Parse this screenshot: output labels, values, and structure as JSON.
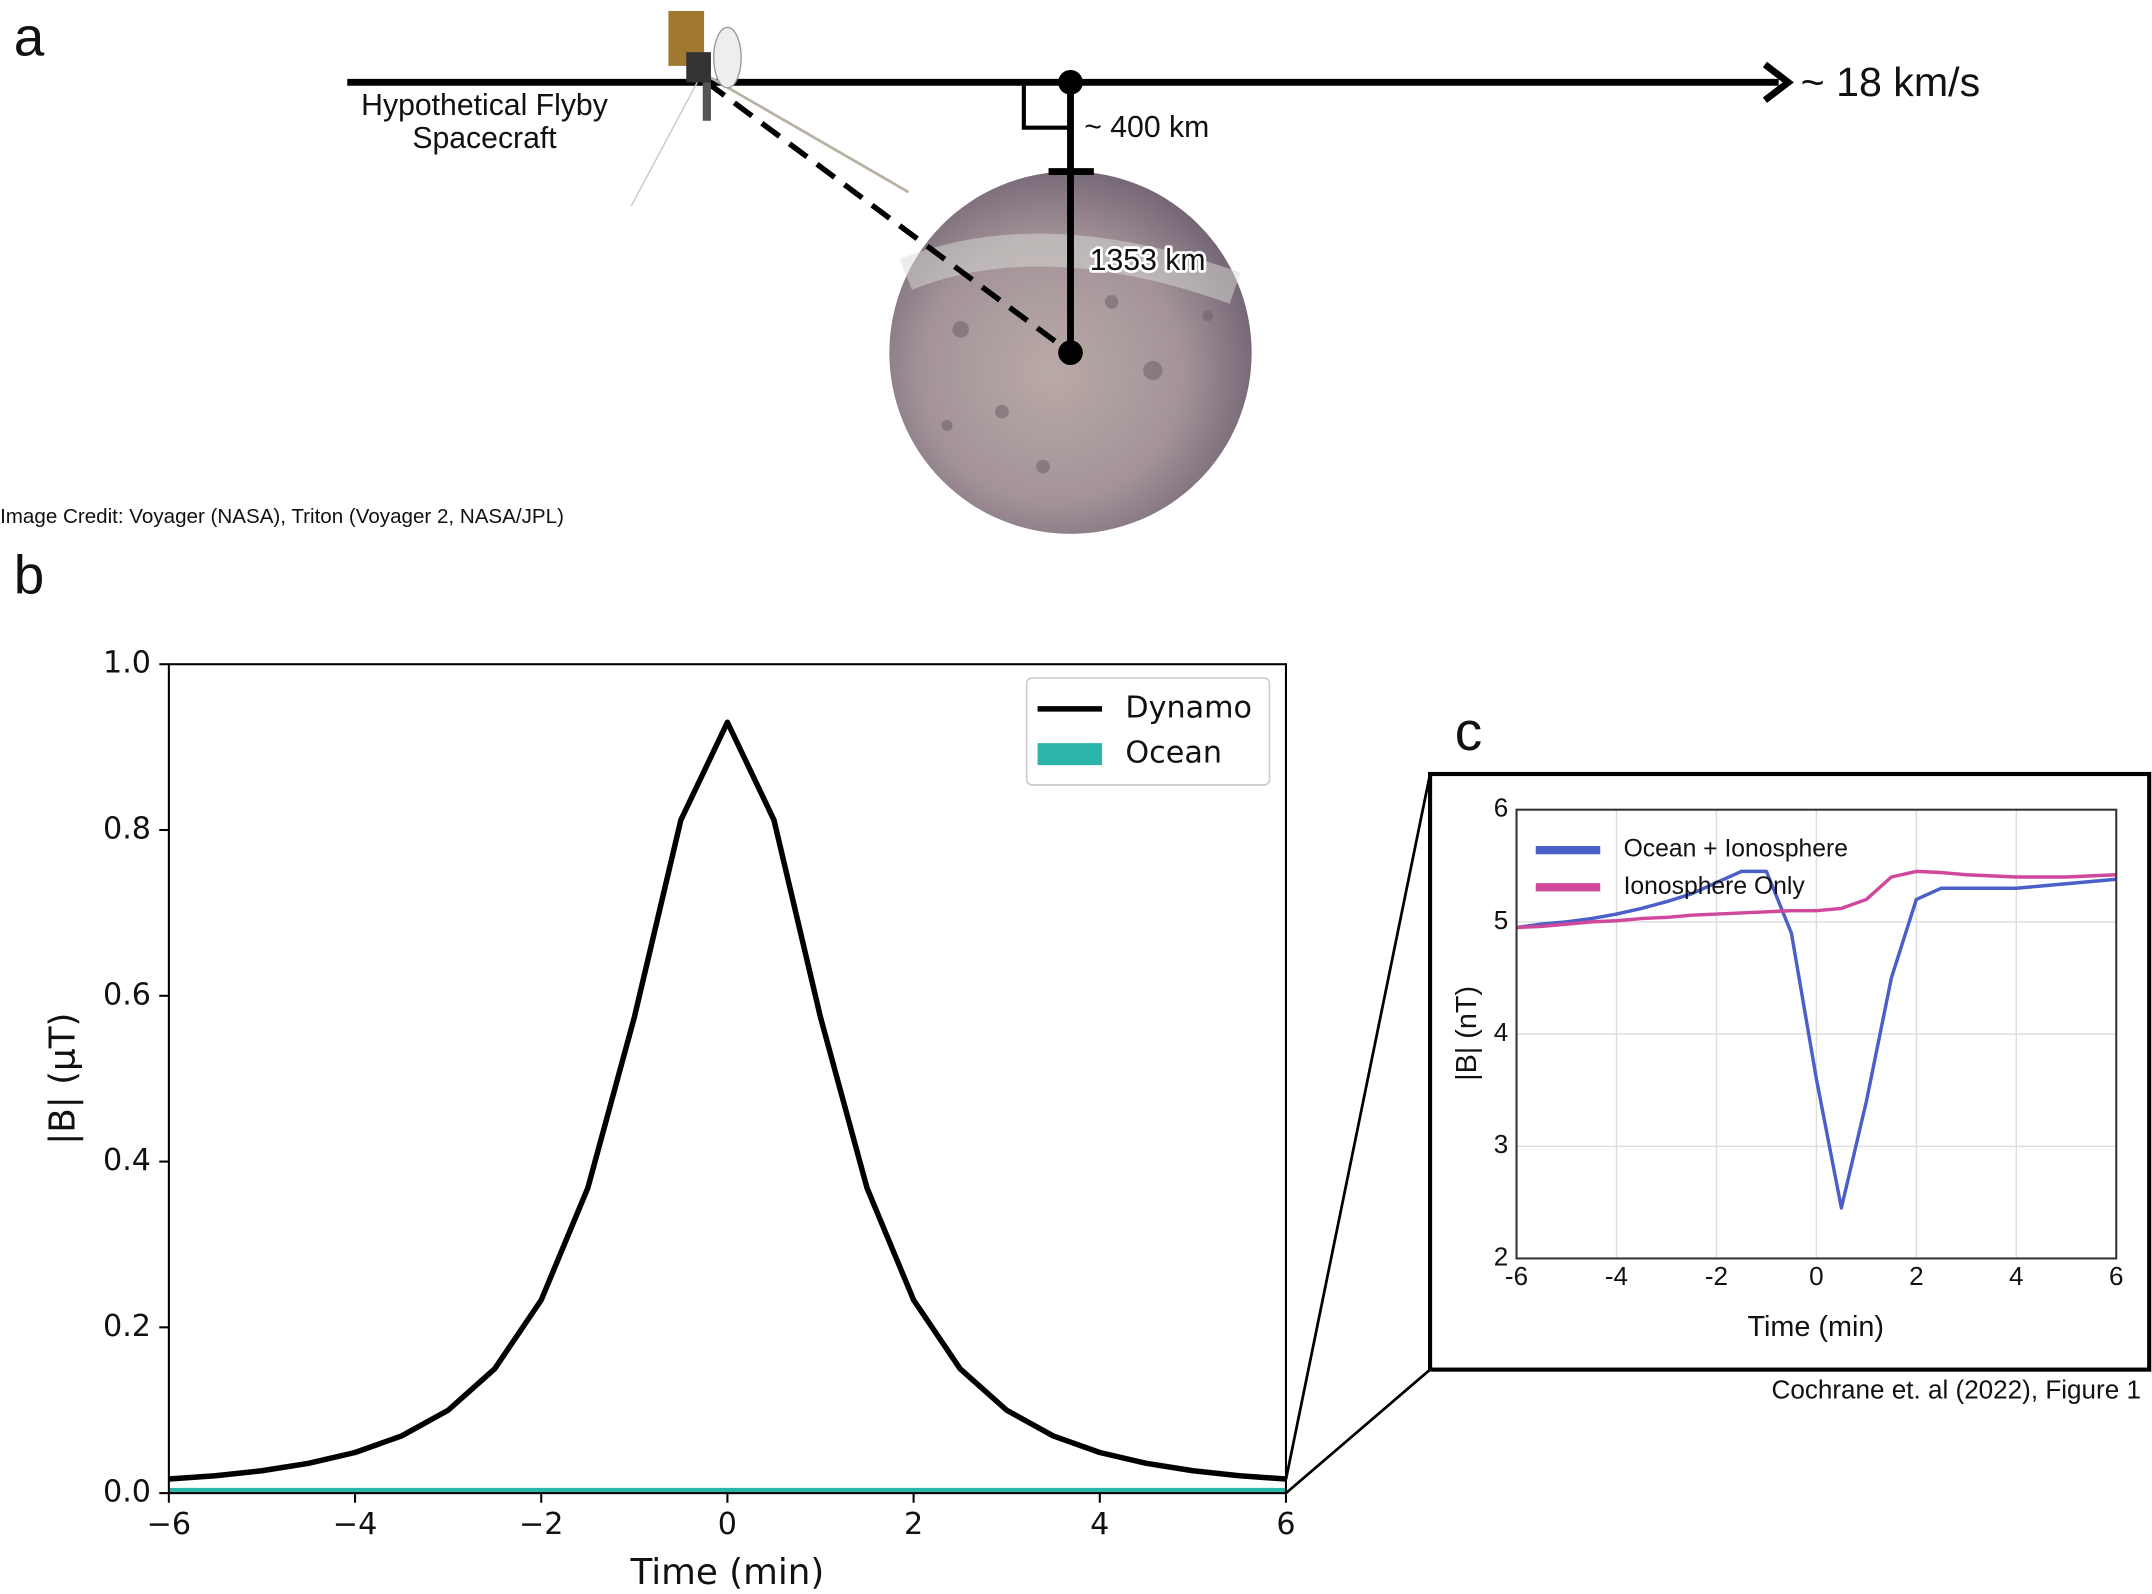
{
  "panel_a": {
    "label": "a",
    "spacecraft_label": [
      "Hypothetical Flyby",
      "Spacecraft"
    ],
    "altitude": "~ 400 km",
    "speed": "~ 18 km/s",
    "radius": "1353 km",
    "credit": "Image Credit:  Voyager (NASA), Triton (Voyager 2, NASA/JPL)"
  },
  "panel_labels": [
    "b",
    "c"
  ],
  "citation": "Cochrane et. al (2022), Figure 1",
  "chart_data": [
    {
      "type": "line",
      "xlabel": "Time (min)",
      "ylabel": "|B| (µT)",
      "x": [
        -6,
        -5.5,
        -5,
        -4.5,
        -4,
        -3.5,
        -3,
        -2.5,
        -2,
        -1.5,
        -1,
        -0.5,
        0,
        0.5,
        1,
        1.5,
        2,
        2.5,
        3,
        3.5,
        4,
        4.5,
        5,
        5.5,
        6
      ],
      "series": [
        {
          "name": "Dynamo",
          "color": "#000000",
          "values": [
            0.017,
            0.021,
            0.027,
            0.036,
            0.049,
            0.069,
            0.1,
            0.15,
            0.233,
            0.368,
            0.574,
            0.812,
            0.93,
            0.812,
            0.574,
            0.368,
            0.233,
            0.15,
            0.1,
            0.069,
            0.049,
            0.036,
            0.027,
            0.021,
            0.017
          ]
        },
        {
          "name": "Ocean",
          "color": "#2ab5a8",
          "values": [
            0.003,
            0.003,
            0.003,
            0.003,
            0.003,
            0.003,
            0.003,
            0.003,
            0.003,
            0.003,
            0.003,
            0.003,
            0.003,
            0.003,
            0.003,
            0.003,
            0.003,
            0.003,
            0.003,
            0.003,
            0.003,
            0.003,
            0.003,
            0.003,
            0.003
          ]
        }
      ],
      "xlim": [
        -6,
        6
      ],
      "ylim": [
        0,
        1
      ],
      "xticks": [
        {
          "value": -6,
          "label": "−6"
        },
        {
          "value": -4,
          "label": "−4"
        },
        {
          "value": -2,
          "label": "−2"
        },
        0,
        2,
        4,
        6
      ],
      "yticks": [
        {
          "value": 0,
          "label": "0.0"
        },
        0.2,
        0.4,
        0.6,
        0.8,
        {
          "value": 1,
          "label": "1.0"
        }
      ],
      "grid": false,
      "legend": "upper right"
    },
    {
      "type": "line",
      "xlabel": "Time (min)",
      "ylabel": "|B| (nT)",
      "x": [
        -6,
        -5.5,
        -5,
        -4.5,
        -4,
        -3.5,
        -3,
        -2.5,
        -2,
        -1.5,
        -1,
        -0.5,
        0,
        0.5,
        1,
        1.5,
        2,
        2.5,
        3,
        3.5,
        4,
        4.5,
        5,
        5.5,
        6
      ],
      "series": [
        {
          "name": "Ocean + Ionosphere",
          "color": "#4a5fc8",
          "values": [
            4.95,
            4.98,
            5.0,
            5.03,
            5.07,
            5.12,
            5.18,
            5.25,
            5.35,
            5.45,
            5.45,
            4.9,
            3.6,
            2.45,
            3.4,
            4.5,
            5.2,
            5.3,
            5.3,
            5.3,
            5.3,
            5.32,
            5.34,
            5.36,
            5.38
          ]
        },
        {
          "name": "Ionosphere Only",
          "color": "#d0489c",
          "values": [
            4.95,
            4.96,
            4.98,
            5.0,
            5.01,
            5.03,
            5.04,
            5.06,
            5.07,
            5.08,
            5.09,
            5.1,
            5.1,
            5.12,
            5.2,
            5.4,
            5.45,
            5.44,
            5.42,
            5.41,
            5.4,
            5.4,
            5.4,
            5.41,
            5.42
          ]
        }
      ],
      "xlim": [
        -6,
        6
      ],
      "ylim": [
        2,
        6
      ],
      "xticks": [
        -6,
        -4,
        -2,
        0,
        2,
        4,
        6
      ],
      "yticks": [
        2,
        3,
        4,
        5,
        6
      ],
      "grid": true,
      "legend": "upper left"
    }
  ]
}
